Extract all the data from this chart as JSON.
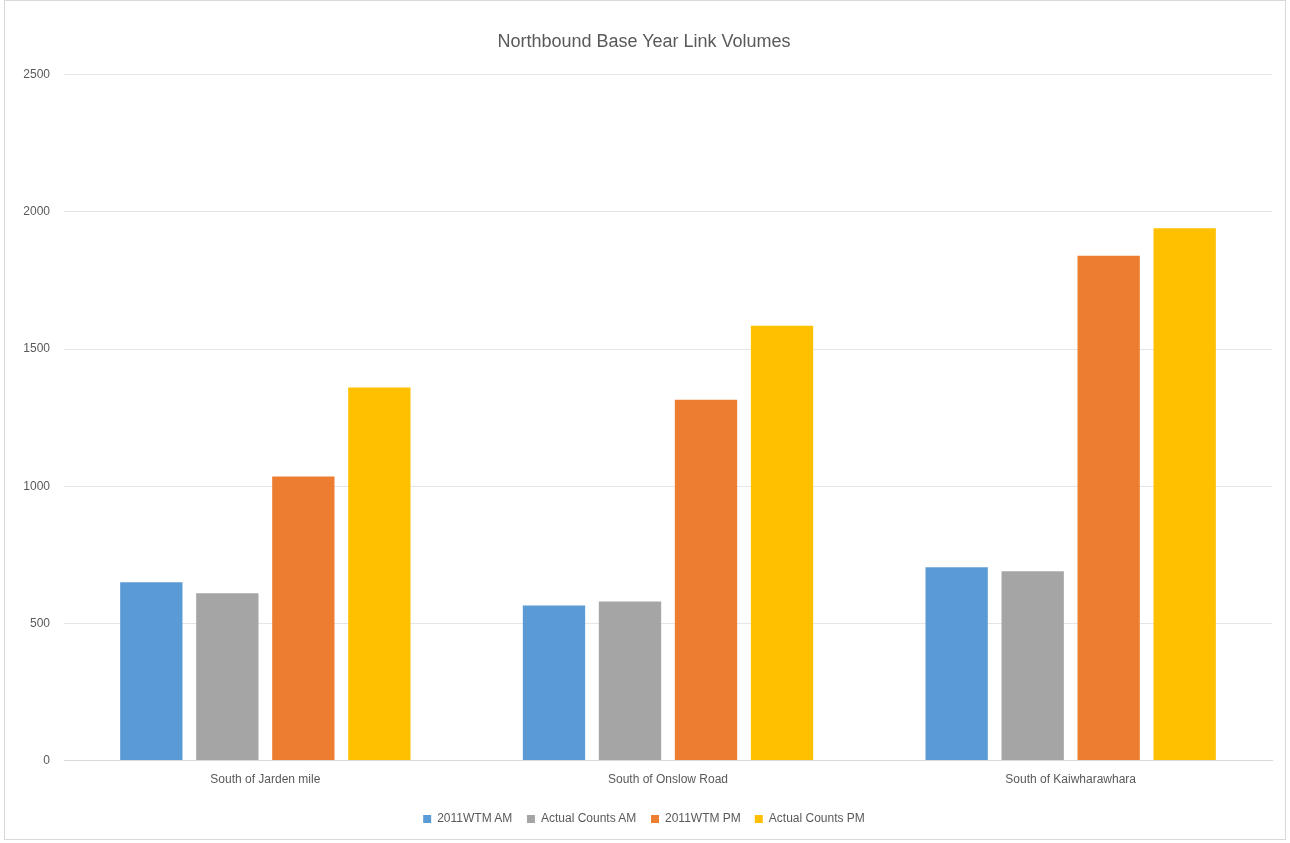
{
  "chart_data": {
    "type": "bar",
    "title": "Northbound Base Year Link Volumes",
    "categories": [
      "South of Jarden mile",
      "South of Onslow Road",
      "South of Kaiwharawhara"
    ],
    "series": [
      {
        "name": "2011WTM AM",
        "color": "#5b9bd5",
        "values": [
          650,
          565,
          705
        ]
      },
      {
        "name": "Actual Counts AM",
        "color": "#a5a5a5",
        "values": [
          610,
          580,
          690
        ]
      },
      {
        "name": "2011WTM PM",
        "color": "#ed7d31",
        "values": [
          1035,
          1315,
          1840
        ]
      },
      {
        "name": "Actual Counts PM",
        "color": "#ffc000",
        "values": [
          1360,
          1585,
          1940
        ]
      }
    ],
    "ylim": [
      0,
      2500
    ],
    "yticks": [
      0,
      500,
      1000,
      1500,
      2000,
      2500
    ],
    "grid": "y",
    "legend": "bottom"
  }
}
